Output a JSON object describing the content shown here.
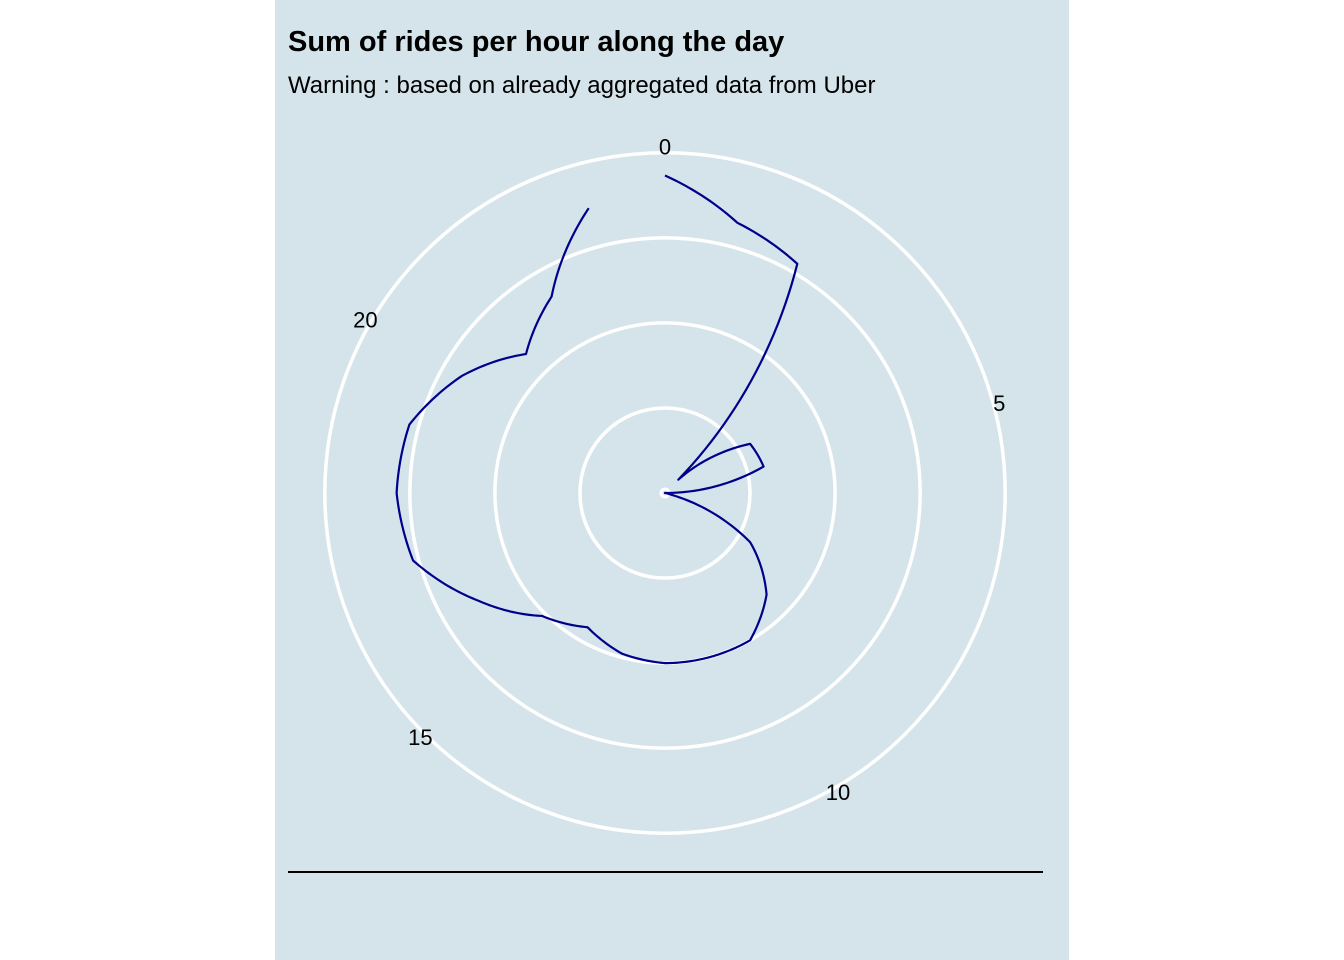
{
  "chart_data": {
    "type": "line",
    "coordinate_system": "polar",
    "title": "Sum of rides per hour along the day",
    "subtitle": "Warning : based on already aggregated data from Uber",
    "xlabel": "",
    "ylabel": "",
    "x_ticks": [
      "0",
      "5",
      "10",
      "15",
      "20"
    ],
    "x_range": [
      0,
      24
    ],
    "y_range": [
      0,
      100
    ],
    "radial_gridlines": [
      22.5,
      45,
      67.5,
      90
    ],
    "grid": true,
    "legend": "none",
    "line_color": "#00008b",
    "grid_color": "#ffffff",
    "background_color": "#d5e4eb",
    "series": [
      {
        "x": [
          0,
          1,
          2,
          3,
          4,
          5,
          6,
          7,
          8,
          9,
          10,
          11,
          12,
          13,
          14,
          15,
          16,
          17,
          18,
          19,
          20,
          21,
          22,
          23
        ],
        "values": [
          84,
          74,
          70,
          5,
          26,
          27,
          0,
          1,
          26,
          38,
          45,
          45,
          45,
          44,
          41,
          46,
          57,
          69,
          71,
          70,
          62,
          52,
          60,
          78
        ]
      }
    ]
  }
}
